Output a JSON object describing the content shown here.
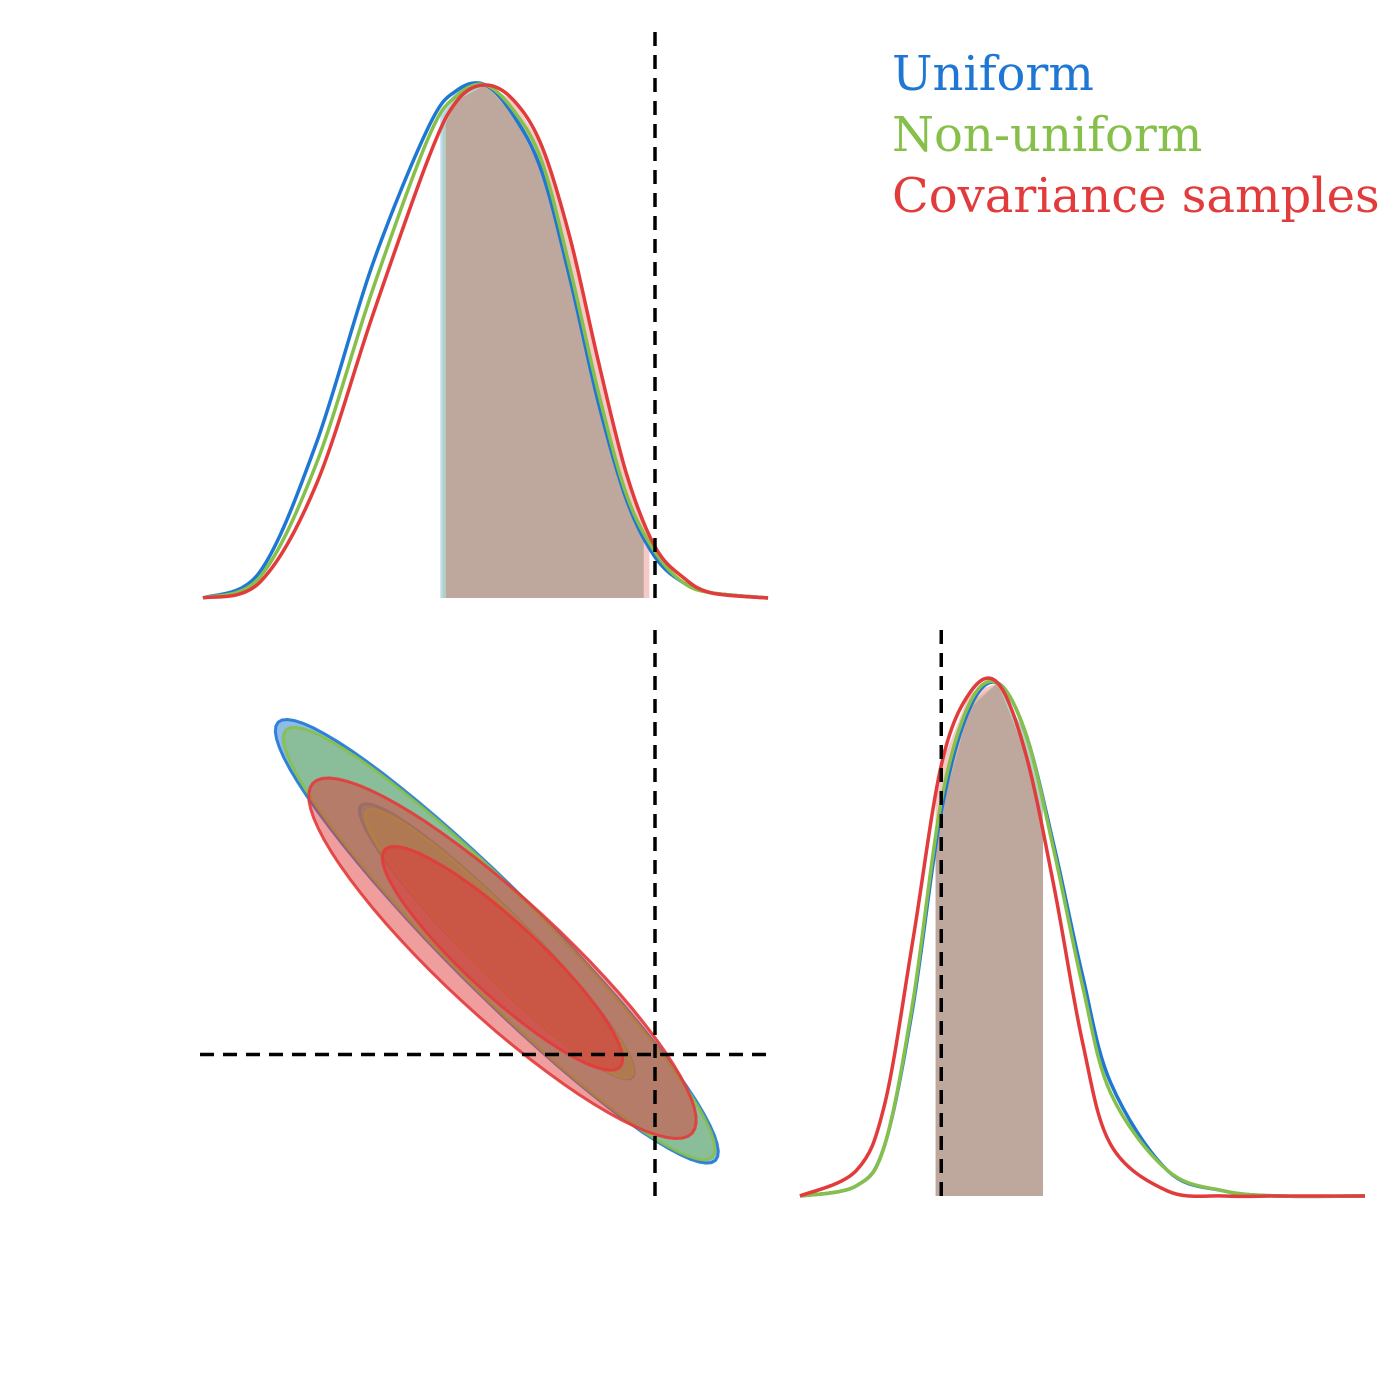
{
  "colors": {
    "uniform": "#1f77d4",
    "non_uniform": "#86c04a",
    "covariance": "#e23b3b",
    "truth": "#000000"
  },
  "chart_data": {
    "type": "corner",
    "xlabel": "",
    "ylabel": "",
    "legend_position": "top-right",
    "legend": [
      {
        "key": "uniform",
        "label": "Uniform"
      },
      {
        "key": "non_uniform",
        "label": "Non-uniform"
      },
      {
        "key": "covariance",
        "label": "Covariance samples"
      }
    ],
    "truth": {
      "p1": 1.0,
      "p2": 0.0
    },
    "axis_ranges": {
      "p1": [
        -3.0,
        2.0
      ],
      "p2": [
        -1.25,
        3.75
      ]
    },
    "marginal_p1": {
      "x": [
        -3.0,
        -2.5,
        -2.0,
        -1.5,
        -1.0,
        -0.75,
        -0.5,
        -0.25,
        0.0,
        0.25,
        0.5,
        0.75,
        1.0,
        1.25,
        1.5,
        2.0
      ],
      "series": [
        {
          "key": "uniform",
          "values": [
            0.0,
            0.05,
            0.3,
            0.65,
            0.92,
            0.99,
            1.0,
            0.94,
            0.83,
            0.62,
            0.38,
            0.19,
            0.08,
            0.03,
            0.01,
            0.0
          ],
          "interval": [
            -0.9,
            0.9
          ]
        },
        {
          "key": "non_uniform",
          "values": [
            0.0,
            0.04,
            0.26,
            0.6,
            0.9,
            0.98,
            1.0,
            0.95,
            0.85,
            0.64,
            0.4,
            0.2,
            0.09,
            0.03,
            0.01,
            0.0
          ],
          "interval": [
            -0.88,
            0.9
          ]
        },
        {
          "key": "covariance",
          "values": [
            0.0,
            0.03,
            0.22,
            0.55,
            0.86,
            0.97,
            1.0,
            0.97,
            0.88,
            0.7,
            0.46,
            0.24,
            0.1,
            0.04,
            0.01,
            0.0
          ],
          "interval": [
            -0.85,
            0.95
          ]
        }
      ]
    },
    "marginal_p2": {
      "x": [
        -1.25,
        -0.75,
        -0.5,
        -0.25,
        0.0,
        0.25,
        0.5,
        0.75,
        1.0,
        1.25,
        1.5,
        2.0,
        2.5,
        3.0,
        3.75
      ],
      "series": [
        {
          "key": "uniform",
          "values": [
            0.0,
            0.02,
            0.1,
            0.37,
            0.75,
            0.95,
            1.0,
            0.9,
            0.68,
            0.43,
            0.22,
            0.05,
            0.01,
            0.0,
            0.0
          ],
          "interval": [
            -0.05,
            0.9
          ]
        },
        {
          "key": "non_uniform",
          "values": [
            0.0,
            0.02,
            0.1,
            0.38,
            0.77,
            0.96,
            1.0,
            0.9,
            0.67,
            0.41,
            0.2,
            0.05,
            0.01,
            0.0,
            0.0
          ],
          "interval": [
            -0.05,
            0.9
          ]
        },
        {
          "key": "covariance",
          "values": [
            0.0,
            0.05,
            0.18,
            0.5,
            0.84,
            0.98,
            1.0,
            0.86,
            0.6,
            0.3,
            0.1,
            0.01,
            0.0,
            0.0,
            0.0
          ],
          "interval": [
            -0.05,
            0.9
          ]
        }
      ]
    },
    "contours_2d": {
      "levels": [
        "68%",
        "95%"
      ],
      "series": [
        {
          "key": "uniform",
          "mean": [
            -0.4,
            1.0
          ],
          "sd": [
            0.8,
            0.8
          ],
          "rho": -0.95
        },
        {
          "key": "non_uniform",
          "mean": [
            -0.38,
            0.98
          ],
          "sd": [
            0.78,
            0.78
          ],
          "rho": -0.95
        },
        {
          "key": "covariance",
          "mean": [
            -0.35,
            0.85
          ],
          "sd": [
            0.7,
            0.65
          ],
          "rho": -0.9
        }
      ]
    }
  }
}
